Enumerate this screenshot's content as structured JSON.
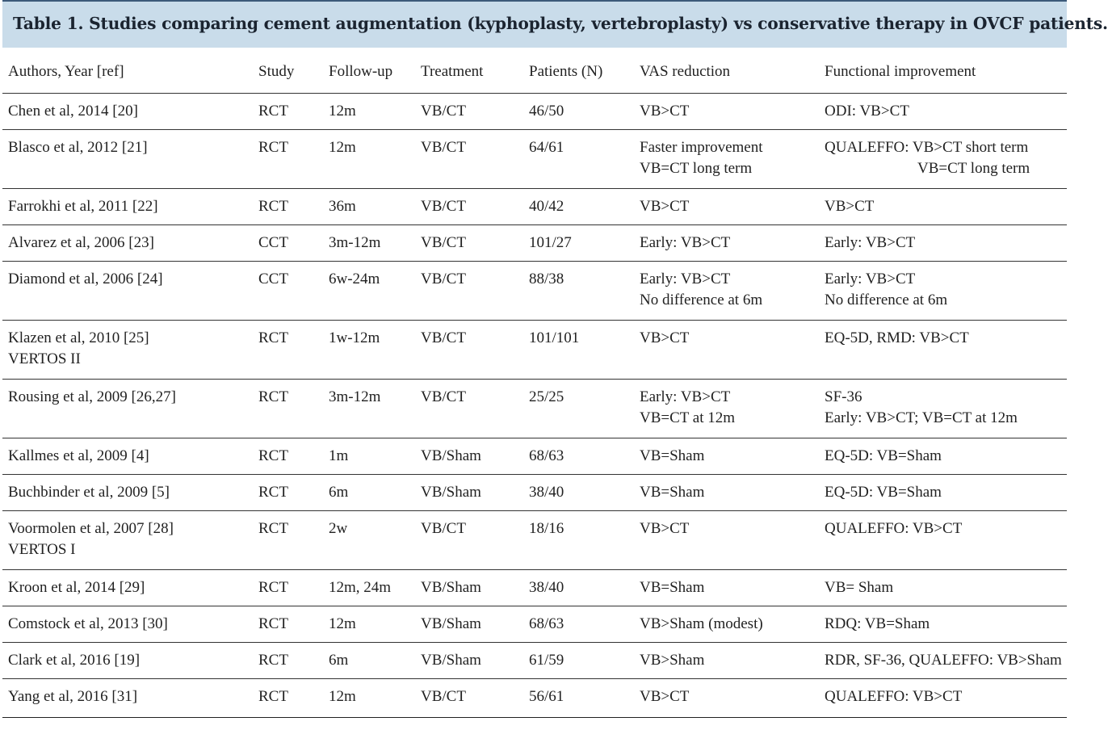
{
  "caption": "Table 1. Studies comparing cement augmentation (kyphoplasty, vertebroplasty) vs conservative therapy in OVCF patients.",
  "columns": [
    "Authors, Year [ref]",
    "Study",
    "Follow-up",
    "Treatment",
    "Patients (N)",
    "VAS reduction",
    "Functional improvement"
  ],
  "rows": [
    {
      "author": [
        "Chen et al, 2014 [20]"
      ],
      "study": "RCT",
      "followup": "12m",
      "treatment": "VB/CT",
      "patients": "46/50",
      "vas": [
        "VB>CT"
      ],
      "func": [
        "ODI:  VB>CT"
      ]
    },
    {
      "author": [
        "Blasco et al, 2012 [21]"
      ],
      "study": "RCT",
      "followup": "12m",
      "treatment": "VB/CT",
      "patients": "64/61",
      "vas": [
        "Faster improvement",
        "VB=CT long term"
      ],
      "func": [
        "QUALEFFO:  VB>CT short term",
        "VB=CT long term"
      ]
    },
    {
      "author": [
        "Farrokhi et al, 2011 [22]"
      ],
      "study": "RCT",
      "followup": "36m",
      "treatment": "VB/CT",
      "patients": "40/42",
      "vas": [
        "VB>CT"
      ],
      "func": [
        "VB>CT"
      ]
    },
    {
      "author": [
        "Alvarez et al, 2006 [23]"
      ],
      "study": "CCT",
      "followup": "3m-12m",
      "treatment": "VB/CT",
      "patients": "101/27",
      "vas": [
        "Early: VB>CT"
      ],
      "func": [
        "Early:  VB>CT"
      ]
    },
    {
      "author": [
        "Diamond et al, 2006 [24]"
      ],
      "study": "CCT",
      "followup": "6w-24m",
      "treatment": "VB/CT",
      "patients": "88/38",
      "vas": [
        "Early: VB>CT",
        "No difference at 6m"
      ],
      "func": [
        "Early:  VB>CT",
        "No difference at 6m"
      ]
    },
    {
      "author": [
        "Klazen et al, 2010 [25]",
        "VERTOS II"
      ],
      "study": "RCT",
      "followup": "1w-12m",
      "treatment": "VB/CT",
      "patients": "101/101",
      "vas": [
        "VB>CT"
      ],
      "func": [
        "EQ-5D, RMD:  VB>CT"
      ]
    },
    {
      "author": [
        "Rousing et al, 2009 [26,27]"
      ],
      "study": "RCT",
      "followup": "3m-12m",
      "treatment": "VB/CT",
      "patients": "25/25",
      "vas": [
        "Early:  VB>CT",
        "VB=CT at 12m"
      ],
      "func": [
        "SF-36",
        "Early:  VB>CT;  VB=CT at 12m"
      ]
    },
    {
      "author": [
        "Kallmes et al, 2009 [4]"
      ],
      "study": "RCT",
      "followup": "1m",
      "treatment": "VB/Sham",
      "patients": "68/63",
      "vas": [
        "VB=Sham"
      ],
      "func": [
        "EQ-5D:  VB=Sham"
      ]
    },
    {
      "author": [
        "Buchbinder et al, 2009 [5]"
      ],
      "study": "RCT",
      "followup": "6m",
      "treatment": "VB/Sham",
      "patients": "38/40",
      "vas": [
        "VB=Sham"
      ],
      "func": [
        "EQ-5D:  VB=Sham"
      ]
    },
    {
      "author": [
        "Voormolen et al, 2007 [28]",
        "VERTOS I"
      ],
      "study": "RCT",
      "followup": "2w",
      "treatment": "VB/CT",
      "patients": "18/16",
      "vas": [
        "VB>CT"
      ],
      "func": [
        "QUALEFFO:  VB>CT"
      ]
    },
    {
      "author": [
        "Kroon et al, 2014 [29]"
      ],
      "study": "RCT",
      "followup": "12m, 24m",
      "treatment": "VB/Sham",
      "patients": "38/40",
      "vas": [
        "VB=Sham"
      ],
      "func": [
        "VB= Sham"
      ]
    },
    {
      "author": [
        "Comstock et al, 2013 [30]"
      ],
      "study": "RCT",
      "followup": "12m",
      "treatment": "VB/Sham",
      "patients": "68/63",
      "vas": [
        "VB>Sham (modest)"
      ],
      "func": [
        "RDQ:  VB=Sham"
      ]
    },
    {
      "author": [
        "Clark et al, 2016 [19]"
      ],
      "study": "RCT",
      "followup": "6m",
      "treatment": "VB/Sham",
      "patients": "61/59",
      "vas": [
        "VB>Sham"
      ],
      "func": [
        "RDR, SF-36, QUALEFFO: VB>Sham"
      ]
    },
    {
      "author": [
        "Yang et al, 2016 [31]"
      ],
      "study": "RCT",
      "followup": "12m",
      "treatment": "VB/CT",
      "patients": "56/61",
      "vas": [
        "VB>CT"
      ],
      "func": [
        "QUALEFFO:  VB>CT"
      ]
    }
  ]
}
